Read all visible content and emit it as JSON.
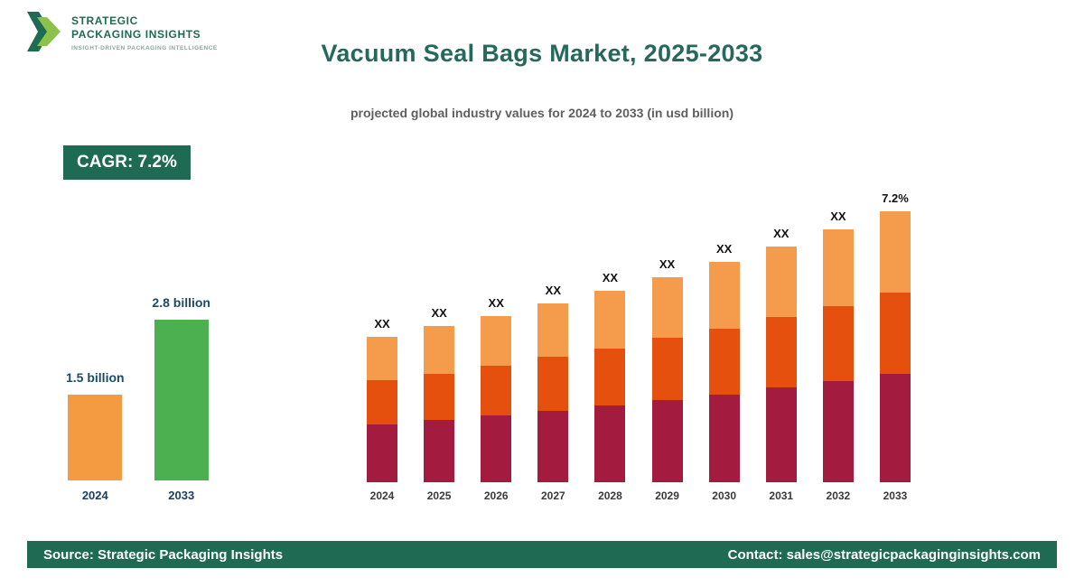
{
  "brand": {
    "line1": "STRATEGIC",
    "line2": "PACKAGING INSIGHTS",
    "tagline": "INSIGHT-DRIVEN PACKAGING INTELLIGENCE"
  },
  "header": {
    "title": "Vacuum Seal Bags Market, 2025-2033",
    "subtitle": "projected global industry values for 2024 to 2033 (in usd billion)"
  },
  "cagr_badge": {
    "label": "CAGR: 7.2%"
  },
  "footer": {
    "source": "Source: Strategic Packaging Insights",
    "contact": "Contact: sales@strategicpackaginginsights.com"
  },
  "colors": {
    "brand_green": "#1e6a52",
    "title_teal": "#26695c",
    "summary_2024_orange": "#f49a41",
    "summary_2033_green": "#4caf50",
    "segment_bottom_crimson": "#a31c40",
    "segment_middle_orangered": "#e5500e",
    "segment_top_orange": "#f49c4c"
  },
  "chart_data": [
    {
      "type": "bar",
      "title": "2024 vs 2033 market size",
      "categories": [
        "2024",
        "2033"
      ],
      "values": [
        1.5,
        2.8
      ],
      "value_labels": [
        "1.5 billion",
        "2.8 billion"
      ],
      "colors": [
        "#f49a41",
        "#4caf50"
      ],
      "ylim": [
        0,
        2.8
      ],
      "grid": false,
      "legend": "none"
    },
    {
      "type": "bar",
      "subtype": "stacked",
      "title": "Projected values 2024-2033 (usd billion)",
      "categories": [
        "2024",
        "2025",
        "2026",
        "2027",
        "2028",
        "2029",
        "2030",
        "2031",
        "2032",
        "2033"
      ],
      "totals": [
        1.5,
        1.61,
        1.72,
        1.85,
        1.98,
        2.12,
        2.28,
        2.44,
        2.61,
        2.8
      ],
      "series": [
        {
          "name": "bottom",
          "color": "#a31c40",
          "values": [
            0.6,
            0.64,
            0.69,
            0.74,
            0.79,
            0.85,
            0.91,
            0.98,
            1.04,
            1.12
          ]
        },
        {
          "name": "middle",
          "color": "#e5500e",
          "values": [
            0.45,
            0.48,
            0.52,
            0.56,
            0.59,
            0.64,
            0.68,
            0.73,
            0.78,
            0.84
          ]
        },
        {
          "name": "top",
          "color": "#f49c4c",
          "values": [
            0.45,
            0.49,
            0.51,
            0.55,
            0.6,
            0.63,
            0.69,
            0.73,
            0.79,
            0.84
          ]
        }
      ],
      "bar_labels": [
        "XX",
        "XX",
        "XX",
        "XX",
        "XX",
        "XX",
        "XX",
        "XX",
        "XX",
        "7.2%"
      ],
      "ylim": [
        0,
        2.8
      ],
      "grid": false,
      "legend": "none"
    }
  ]
}
